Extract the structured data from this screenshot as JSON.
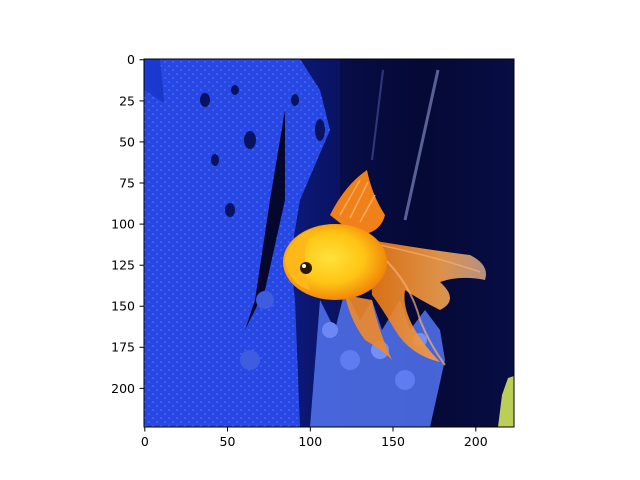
{
  "figure": {
    "x_ticks": [
      "0",
      "50",
      "100",
      "150",
      "200"
    ],
    "y_ticks": [
      "0",
      "25",
      "50",
      "75",
      "100",
      "125",
      "150",
      "175",
      "200"
    ]
  },
  "image": {
    "subject": "goldfish-in-aquarium",
    "colors": {
      "water_dark": "#070b3a",
      "water_blue": "#1f3fd8",
      "rock_blue": "#2a4ef0",
      "plant_blue": "#5a7cf2",
      "fish_orange": "#f07a10",
      "fish_yellow": "#ffd21a",
      "fin_orange": "#f28a2c"
    }
  }
}
